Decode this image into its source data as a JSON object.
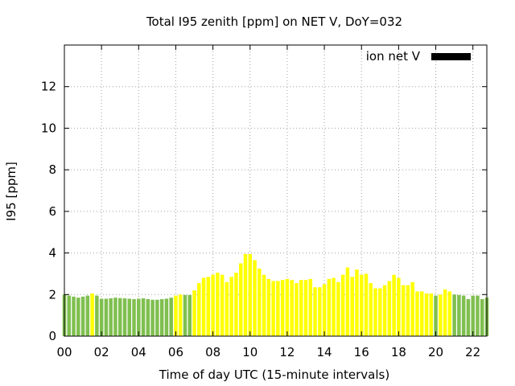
{
  "chart_data": {
    "type": "bar",
    "title": "Total I95 zenith [ppm] on NET V, DoY=032",
    "xlabel": "Time of day UTC (15-minute intervals)",
    "ylabel": "I95 [ppm]",
    "ylim": [
      0,
      14
    ],
    "xlim": [
      0,
      22.75
    ],
    "yticks": [
      0,
      2,
      4,
      6,
      8,
      10,
      12
    ],
    "xticks": [
      0,
      2,
      4,
      6,
      8,
      10,
      12,
      14,
      16,
      18,
      20,
      22
    ],
    "xtick_labels": [
      "00",
      "02",
      "04",
      "06",
      "08",
      "10",
      "12",
      "14",
      "16",
      "18",
      "20",
      "22"
    ],
    "grid": true,
    "legend": {
      "position": "top-right",
      "entries": [
        {
          "label": "ion net V",
          "color": "#000000"
        }
      ]
    },
    "colors": {
      "green": "#7fbf4f",
      "yellow": "#ffff00"
    },
    "series": [
      {
        "interval_hours": 0.25,
        "x_start": 0,
        "values": [
          2.0,
          1.95,
          1.9,
          1.85,
          1.9,
          1.95,
          2.05,
          1.95,
          1.8,
          1.8,
          1.82,
          1.85,
          1.83,
          1.82,
          1.8,
          1.78,
          1.8,
          1.82,
          1.78,
          1.75,
          1.75,
          1.78,
          1.8,
          1.85,
          1.95,
          2.0,
          1.98,
          1.98,
          2.2,
          2.55,
          2.8,
          2.85,
          2.95,
          3.05,
          2.95,
          2.6,
          2.85,
          3.05,
          3.5,
          3.95,
          3.95,
          3.65,
          3.25,
          2.95,
          2.75,
          2.65,
          2.65,
          2.7,
          2.75,
          2.7,
          2.55,
          2.7,
          2.7,
          2.75,
          2.35,
          2.35,
          2.5,
          2.75,
          2.8,
          2.6,
          2.95,
          3.3,
          2.85,
          3.2,
          2.95,
          3.0,
          2.55,
          2.3,
          2.3,
          2.45,
          2.65,
          2.95,
          2.8,
          2.45,
          2.45,
          2.6,
          2.15,
          2.15,
          2.05,
          2.05,
          1.95,
          2.0,
          2.25,
          2.15,
          2.0,
          1.98,
          1.95,
          1.78,
          1.95,
          1.95,
          1.78,
          1.85
        ],
        "colors": [
          "green",
          "green",
          "green",
          "green",
          "green",
          "green",
          "yellow",
          "green",
          "green",
          "green",
          "green",
          "green",
          "green",
          "green",
          "green",
          "green",
          "green",
          "green",
          "green",
          "green",
          "green",
          "green",
          "green",
          "green",
          "yellow",
          "yellow",
          "green",
          "green",
          "yellow",
          "yellow",
          "yellow",
          "yellow",
          "yellow",
          "yellow",
          "yellow",
          "yellow",
          "yellow",
          "yellow",
          "yellow",
          "yellow",
          "yellow",
          "yellow",
          "yellow",
          "yellow",
          "yellow",
          "yellow",
          "yellow",
          "yellow",
          "yellow",
          "yellow",
          "yellow",
          "yellow",
          "yellow",
          "yellow",
          "yellow",
          "yellow",
          "yellow",
          "yellow",
          "yellow",
          "yellow",
          "yellow",
          "yellow",
          "yellow",
          "yellow",
          "yellow",
          "yellow",
          "yellow",
          "yellow",
          "yellow",
          "yellow",
          "yellow",
          "yellow",
          "yellow",
          "yellow",
          "yellow",
          "yellow",
          "yellow",
          "yellow",
          "yellow",
          "yellow",
          "green",
          "yellow",
          "yellow",
          "yellow",
          "green",
          "green",
          "green",
          "green",
          "green",
          "green",
          "green",
          "green"
        ]
      }
    ]
  }
}
